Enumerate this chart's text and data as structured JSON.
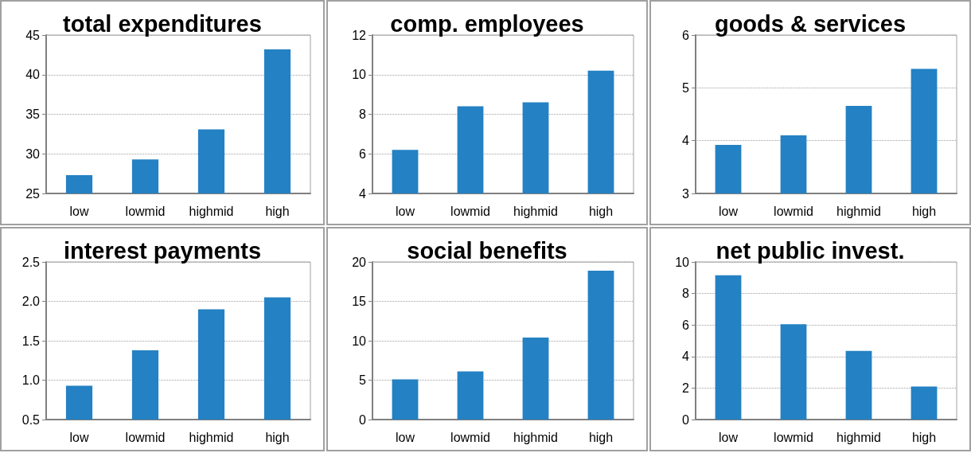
{
  "chart_data": [
    {
      "type": "bar",
      "title": "total expenditures",
      "categories": [
        "low",
        "lowmid",
        "highmid",
        "high"
      ],
      "values": [
        27.3,
        29.3,
        33.1,
        43.2
      ],
      "color": "#2481c3",
      "ylim": [
        25,
        45
      ],
      "yticks": [
        25,
        30,
        35,
        40,
        45
      ],
      "grid": "y"
    },
    {
      "type": "bar",
      "title": "comp. employees",
      "categories": [
        "low",
        "lowmid",
        "highmid",
        "high"
      ],
      "values": [
        6.2,
        8.4,
        8.6,
        10.2
      ],
      "color": "#2481c3",
      "ylim": [
        4,
        12
      ],
      "yticks": [
        4,
        6,
        8,
        10,
        12
      ],
      "grid": "y"
    },
    {
      "type": "bar",
      "title": "goods & services",
      "categories": [
        "low",
        "lowmid",
        "highmid",
        "high"
      ],
      "values": [
        3.92,
        4.1,
        4.66,
        5.36
      ],
      "color": "#2481c3",
      "ylim": [
        3,
        6
      ],
      "yticks": [
        3,
        4,
        5,
        6
      ],
      "grid": "y"
    },
    {
      "type": "bar",
      "title": "interest payments",
      "categories": [
        "low",
        "lowmid",
        "highmid",
        "high"
      ],
      "values": [
        0.93,
        1.38,
        1.9,
        2.05
      ],
      "color": "#2481c3",
      "ylim": [
        0.5,
        2.5
      ],
      "yticks": [
        0.5,
        {
          "value": 1,
          "label": "1.0"
        },
        1.5,
        {
          "value": 2,
          "label": "2.0"
        },
        2.5
      ],
      "grid": "y"
    },
    {
      "type": "bar",
      "title": "social benefits",
      "categories": [
        "low",
        "lowmid",
        "highmid",
        "high"
      ],
      "values": [
        5.1,
        6.1,
        10.4,
        18.9
      ],
      "color": "#2481c3",
      "ylim": [
        0,
        20
      ],
      "yticks": [
        0,
        5,
        10,
        15,
        20
      ],
      "grid": "y"
    },
    {
      "type": "bar",
      "title": "net public invest.",
      "categories": [
        "low",
        "lowmid",
        "highmid",
        "high"
      ],
      "values": [
        9.15,
        6.05,
        4.35,
        2.1
      ],
      "color": "#2481c3",
      "ylim": [
        0,
        10
      ],
      "yticks": [
        0,
        2,
        4,
        6,
        8,
        10
      ],
      "grid": "y"
    }
  ]
}
